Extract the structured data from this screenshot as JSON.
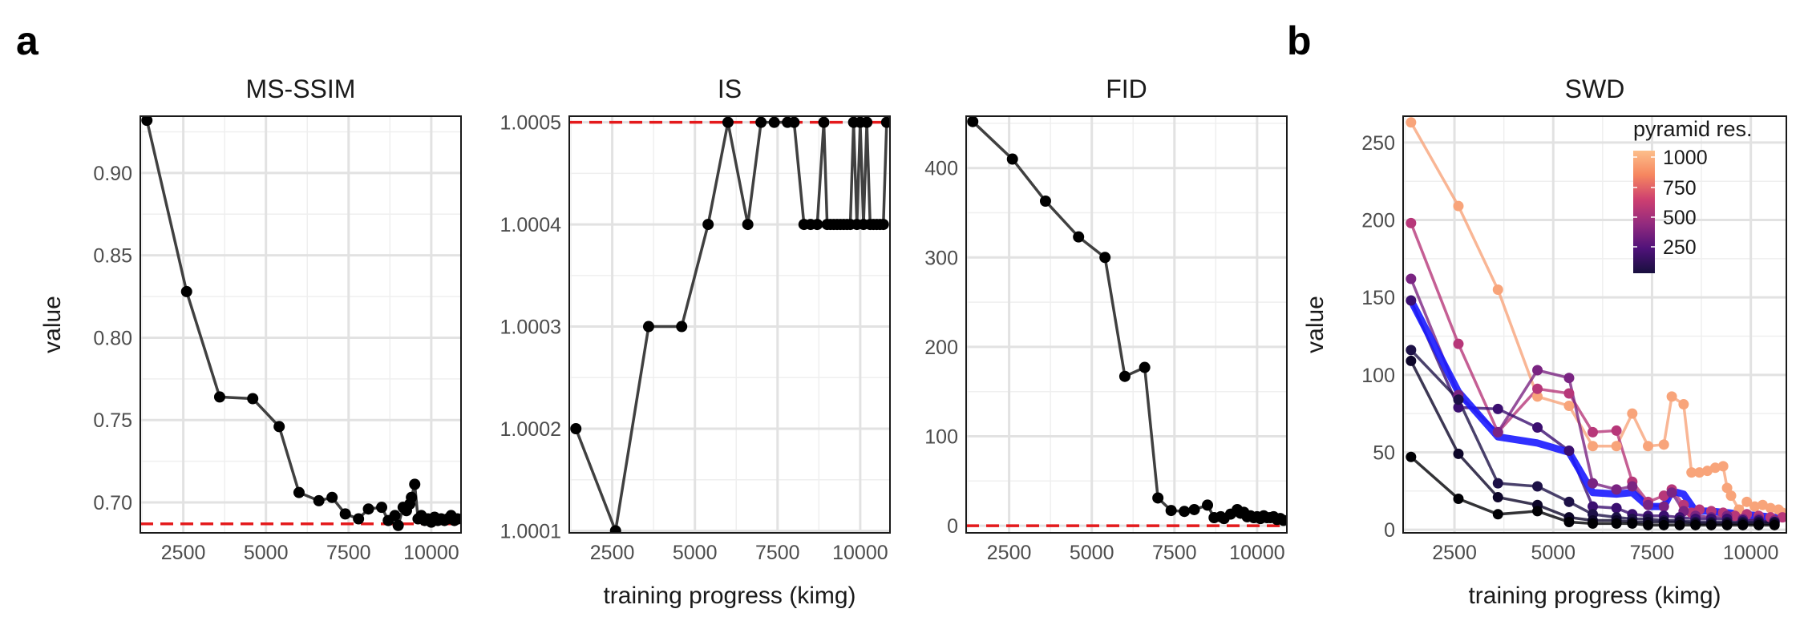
{
  "panel_labels": {
    "a": "a",
    "b": "b"
  },
  "chart_data": [
    {
      "type": "line",
      "title": "MS-SSIM",
      "xlabel": "",
      "ylabel": "value",
      "xlim": [
        1200,
        10900
      ],
      "ylim": [
        0.6815,
        0.9345
      ],
      "xticks": [
        2500,
        5000,
        7500,
        10000
      ],
      "yticks": [
        0.7,
        0.75,
        0.8,
        0.85,
        0.9
      ],
      "ytick_labels": [
        "0.70",
        "0.75",
        "0.80",
        "0.85",
        "0.90"
      ],
      "reference_line": 0.687,
      "reference_color": "#e41a1c",
      "line_color": "#404040",
      "point_color": "#000000",
      "x": [
        1400,
        2600,
        3600,
        4600,
        5400,
        6000,
        6600,
        7000,
        7400,
        7800,
        8100,
        8500,
        8700,
        8900,
        9000,
        9150,
        9250,
        9350,
        9400,
        9500,
        9600,
        9700,
        9800,
        9900,
        10000,
        10100,
        10200,
        10300,
        10400,
        10500,
        10600,
        10700,
        10800
      ],
      "y": [
        0.932,
        0.828,
        0.764,
        0.763,
        0.746,
        0.706,
        0.701,
        0.703,
        0.693,
        0.69,
        0.696,
        0.697,
        0.689,
        0.692,
        0.686,
        0.697,
        0.695,
        0.699,
        0.703,
        0.711,
        0.69,
        0.692,
        0.689,
        0.69,
        0.688,
        0.691,
        0.689,
        0.69,
        0.689,
        0.69,
        0.692,
        0.689,
        0.69
      ]
    },
    {
      "type": "line",
      "title": "IS",
      "xlabel": "training progress (kimg)",
      "ylabel": "",
      "xlim": [
        1200,
        10900
      ],
      "ylim": [
        1.000098,
        1.000506
      ],
      "xticks": [
        2500,
        5000,
        7500,
        10000
      ],
      "yticks": [
        1.0001,
        1.0002,
        1.0003,
        1.0004,
        1.0005
      ],
      "ytick_labels": [
        "1.0001",
        "1.0002",
        "1.0003",
        "1.0004",
        "1.0005"
      ],
      "reference_line": 1.0005,
      "reference_color": "#e41a1c",
      "line_color": "#404040",
      "point_color": "#000000",
      "x": [
        1400,
        2600,
        3600,
        4600,
        5400,
        6000,
        6600,
        7000,
        7400,
        7800,
        8000,
        8300,
        8500,
        8700,
        8900,
        9000,
        9100,
        9200,
        9300,
        9400,
        9500,
        9600,
        9700,
        9800,
        9900,
        10000,
        10100,
        10200,
        10300,
        10400,
        10500,
        10600,
        10700,
        10800
      ],
      "y": [
        1.0002,
        1.0001,
        1.0003,
        1.0003,
        1.0004,
        1.0005,
        1.0004,
        1.0005,
        1.0005,
        1.0005,
        1.0005,
        1.0004,
        1.0004,
        1.0004,
        1.0005,
        1.0004,
        1.0004,
        1.0004,
        1.0004,
        1.0004,
        1.0004,
        1.0004,
        1.0004,
        1.0005,
        1.0004,
        1.0005,
        1.0004,
        1.0005,
        1.0004,
        1.0004,
        1.0004,
        1.0004,
        1.0004,
        1.0005
      ]
    },
    {
      "type": "line",
      "title": "FID",
      "xlabel": "",
      "ylabel": "",
      "xlim": [
        1200,
        10900
      ],
      "ylim": [
        -8,
        458
      ],
      "xticks": [
        2500,
        5000,
        7500,
        10000
      ],
      "yticks": [
        0,
        100,
        200,
        300,
        400
      ],
      "ytick_labels": [
        "0",
        "100",
        "200",
        "300",
        "400"
      ],
      "reference_line": 0,
      "reference_color": "#e41a1c",
      "line_color": "#404040",
      "point_color": "#000000",
      "x": [
        1400,
        2600,
        3600,
        4600,
        5400,
        6000,
        6600,
        7000,
        7400,
        7800,
        8100,
        8500,
        8700,
        8900,
        9000,
        9200,
        9400,
        9500,
        9600,
        9700,
        9800,
        9900,
        10000,
        10100,
        10200,
        10300,
        10400,
        10500,
        10600,
        10700,
        10800
      ],
      "y": [
        452,
        410,
        363,
        323,
        300,
        167,
        177,
        31,
        17,
        16,
        18,
        23,
        9,
        10,
        8,
        13,
        18,
        14,
        15,
        10,
        11,
        9,
        10,
        8,
        11,
        9,
        9,
        10,
        7,
        8,
        6
      ]
    },
    {
      "type": "line",
      "title": "SWD",
      "xlabel": "training progress (kimg)",
      "ylabel": "value",
      "xlim": [
        1200,
        10900
      ],
      "ylim": [
        -2,
        267
      ],
      "xticks": [
        2500,
        5000,
        7500,
        10000
      ],
      "yticks": [
        0,
        50,
        100,
        150,
        200,
        250
      ],
      "ytick_labels": [
        "0",
        "50",
        "100",
        "150",
        "200",
        "250"
      ],
      "legend": {
        "title": "pyramid res.",
        "ticks": [
          "1000",
          "750",
          "500",
          "250"
        ],
        "placement": "top-right",
        "colors": [
          "#fcbf8b",
          "#f6865f",
          "#cd3f70",
          "#922a7e",
          "#4f1279",
          "#180f3e"
        ]
      },
      "series": [
        {
          "res": 1024,
          "color": "#f8a47a",
          "x": [
            1400,
            2600,
            3600,
            4600,
            5400,
            6000,
            6600,
            7000,
            7400,
            7800,
            8000,
            8300,
            8500,
            8700,
            8900,
            9100,
            9300,
            9400,
            9500,
            9700,
            9900,
            10100,
            10300,
            10500,
            10700,
            10800
          ],
          "y": [
            263,
            209,
            155,
            86,
            80,
            54,
            54,
            75,
            54,
            55,
            86,
            81,
            37,
            37,
            38,
            40,
            41,
            27,
            22,
            13,
            18,
            15,
            16,
            14,
            13,
            11
          ]
        },
        {
          "res": 512,
          "color": "#b73779",
          "x": [
            1400,
            2600,
            3600,
            4600,
            5400,
            6000,
            6600,
            7000,
            7400,
            7800,
            8000,
            8300,
            8500,
            8700,
            9000,
            9300,
            9600,
            9900,
            10200,
            10500,
            10800
          ],
          "y": [
            198,
            120,
            63,
            91,
            88,
            63,
            64,
            31,
            18,
            22,
            26,
            16,
            11,
            13,
            12,
            11,
            9,
            10,
            9,
            8,
            8
          ]
        },
        {
          "res": 256,
          "color": "#7a2482",
          "x": [
            1400,
            2600,
            3600,
            4600,
            5400,
            6000,
            6600,
            7000,
            7400,
            7800,
            8000,
            8300,
            8600,
            9000,
            9400,
            9800,
            10200,
            10600
          ],
          "y": [
            162,
            87,
            63,
            103,
            98,
            30,
            26,
            28,
            16,
            15,
            24,
            12,
            9,
            8,
            9,
            7,
            7,
            6
          ]
        },
        {
          "res": 128,
          "color": "#3b0f70",
          "x": [
            1400,
            2600,
            3600,
            4600,
            5400,
            6000,
            6600,
            7000,
            7400,
            7800,
            8200,
            8600,
            9000,
            9400,
            9800,
            10200,
            10600
          ],
          "y": [
            148,
            79,
            78,
            66,
            51,
            15,
            14,
            10,
            9,
            9,
            8,
            7,
            7,
            7,
            6,
            6,
            5
          ]
        },
        {
          "res": 64,
          "color": "#1d1147",
          "x": [
            1400,
            2600,
            3600,
            4600,
            5400,
            6000,
            6600,
            7000,
            7400,
            7800,
            8200,
            8600,
            9000,
            9400,
            9800,
            10200,
            10600
          ],
          "y": [
            116,
            84,
            30,
            28,
            18,
            10,
            8,
            7,
            7,
            6,
            6,
            5,
            5,
            5,
            5,
            5,
            5
          ]
        },
        {
          "res": 32,
          "color": "#0d0629",
          "x": [
            1400,
            2600,
            3600,
            4600,
            5400,
            6000,
            6600,
            7000,
            7400,
            7800,
            8200,
            8600,
            9000,
            9400,
            9800,
            10200,
            10600
          ],
          "y": [
            109,
            49,
            21,
            16,
            8,
            6,
            6,
            5,
            5,
            5,
            5,
            4,
            4,
            4,
            4,
            4,
            4
          ]
        },
        {
          "res": 16,
          "color": "#000004",
          "x": [
            1400,
            2600,
            3600,
            4600,
            5400,
            6000,
            6600,
            7000,
            7400,
            7800,
            8200,
            8600,
            9000,
            9400,
            9800,
            10200,
            10600
          ],
          "y": [
            47,
            20,
            10,
            12,
            5,
            4,
            4,
            4,
            3,
            3,
            3,
            3,
            3,
            3,
            3,
            3,
            3
          ]
        }
      ],
      "average": {
        "color": "#1a1aff",
        "x": [
          1400,
          2600,
          3600,
          4600,
          5400,
          6000,
          6600,
          7000,
          7400,
          7800,
          8000,
          8300,
          8600,
          9000,
          9400,
          9800,
          10200,
          10600,
          10800
        ],
        "y": [
          148,
          89,
          60,
          56,
          50,
          24,
          23,
          24,
          15,
          15,
          25,
          23,
          12,
          12,
          11,
          10,
          9,
          8,
          8
        ]
      }
    }
  ]
}
